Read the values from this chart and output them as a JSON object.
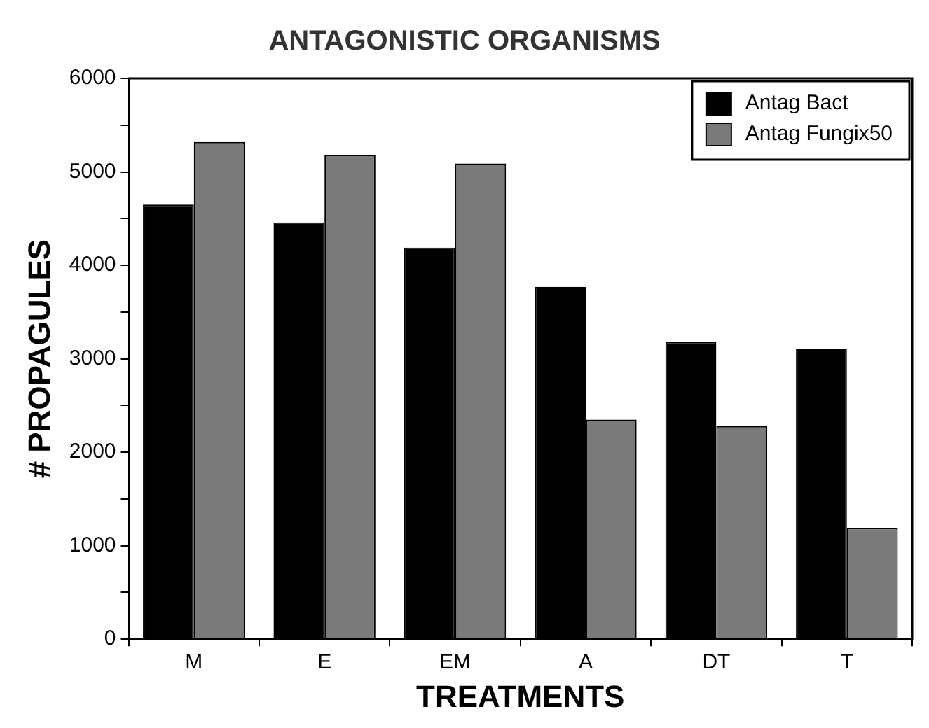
{
  "chart_data": {
    "type": "bar",
    "title": "ANTAGONISTIC ORGANISMS",
    "xlabel": "TREATMENTS",
    "ylabel": "# PROPAGULES",
    "categories": [
      "M",
      "E",
      "EM",
      "A",
      "DT",
      "T"
    ],
    "series": [
      {
        "name": "Antag Bact",
        "color": "#000000",
        "values": [
          4650,
          4460,
          4190,
          3770,
          3180,
          3110
        ]
      },
      {
        "name": "Antag Fungix50",
        "color": "#7a7a7a",
        "values": [
          5320,
          5180,
          5090,
          2350,
          2280,
          1190
        ]
      }
    ],
    "ylim": [
      0,
      6000
    ],
    "yticks": [
      0,
      {
        "value": 500,
        "label": null
      },
      1000,
      {
        "value": 1500,
        "label": null
      },
      2000,
      {
        "value": 2500,
        "label": null
      },
      3000,
      {
        "value": 3500,
        "label": null
      },
      4000,
      {
        "value": 4500,
        "label": null
      },
      5000,
      {
        "value": 5500,
        "label": null
      },
      6000
    ],
    "grid": false,
    "legend": "top right"
  }
}
